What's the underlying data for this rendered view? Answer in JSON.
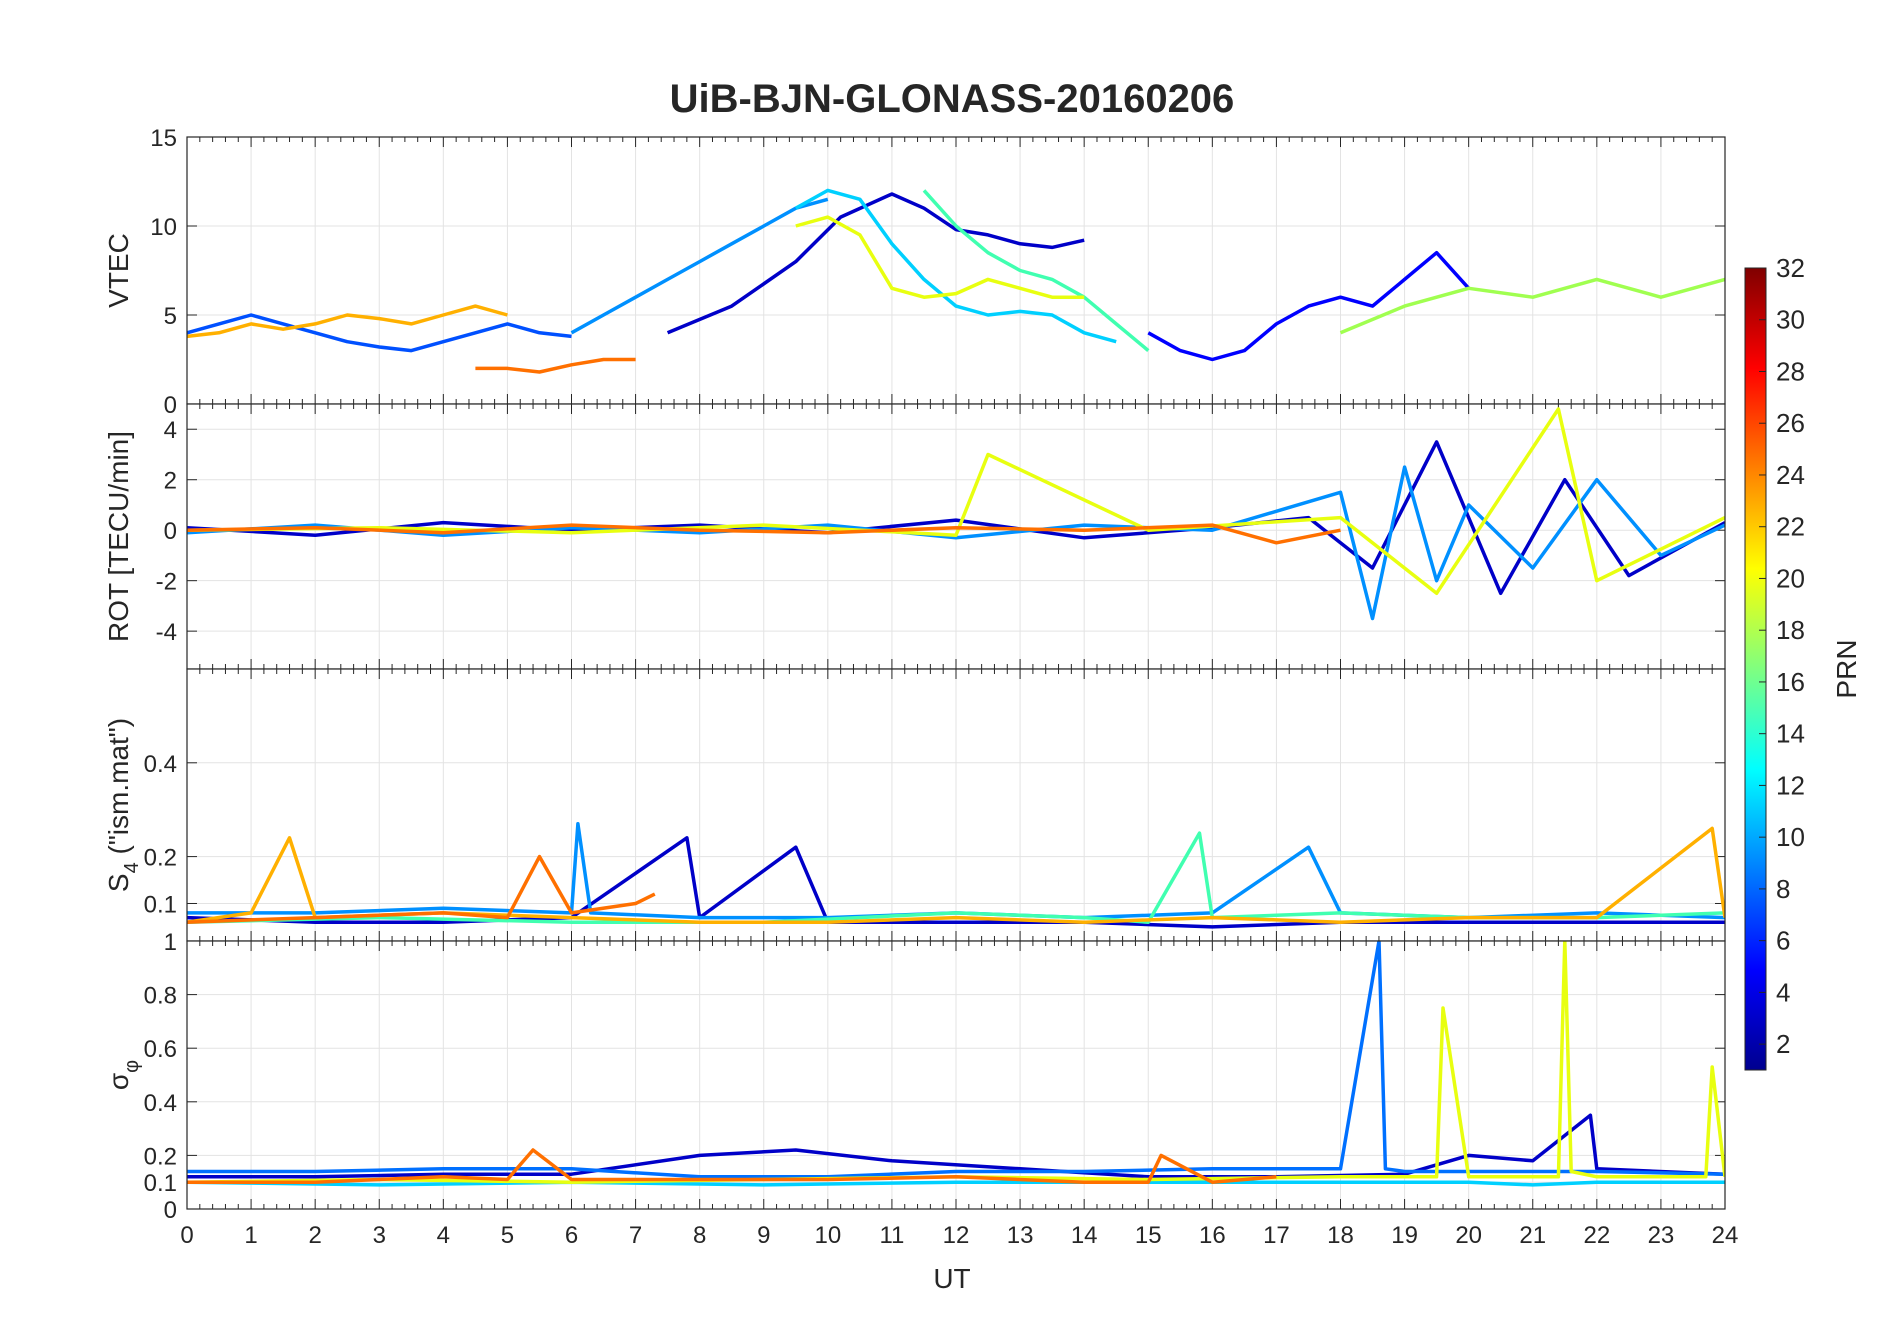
{
  "chart_data": {
    "type": "line",
    "title": "UiB-BJN-GLONASS-20160206",
    "xlabel": "UT",
    "xlim": [
      0,
      24
    ],
    "x_ticks": [
      "0",
      "1",
      "2",
      "3",
      "4",
      "5",
      "6",
      "7",
      "8",
      "9",
      "10",
      "11",
      "12",
      "13",
      "14",
      "15",
      "16",
      "17",
      "18",
      "19",
      "20",
      "21",
      "22",
      "23",
      "24"
    ],
    "grid": true,
    "colorbar": {
      "label": "PRN",
      "range": [
        1,
        32
      ],
      "ticks": [
        "2",
        "4",
        "6",
        "8",
        "10",
        "12",
        "14",
        "16",
        "18",
        "20",
        "22",
        "24",
        "26",
        "28",
        "30",
        "32"
      ],
      "colormap": "jet",
      "placement": "right"
    },
    "panels": [
      {
        "id": "vtec",
        "ylabel": "VTEC",
        "ylim": [
          0,
          15
        ],
        "y_ticks": [
          "0",
          "5",
          "10",
          "15"
        ],
        "series": [
          {
            "name": "PRN 2",
            "color": "#0000c8",
            "x": [
              7.5,
              8.5,
              9.5,
              10.2,
              11.0,
              11.5,
              12.0,
              12.5,
              13.0,
              13.5,
              14.0
            ],
            "values": [
              4.0,
              5.5,
              8.0,
              10.5,
              11.8,
              11.0,
              9.8,
              9.5,
              9.0,
              8.8,
              9.2
            ]
          },
          {
            "name": "PRN 4",
            "color": "#0000ff",
            "x": [
              15.0,
              15.5,
              16.0,
              16.5,
              17.0,
              17.5,
              18.0,
              18.5,
              19.0,
              19.5,
              20.0
            ],
            "values": [
              4.0,
              3.0,
              2.5,
              3.0,
              4.5,
              5.5,
              6.0,
              5.5,
              7.0,
              8.5,
              6.5
            ]
          },
          {
            "name": "PRN 6",
            "color": "#0050ff",
            "x": [
              0.0,
              0.5,
              1.0,
              1.5,
              2.0,
              2.5,
              3.0,
              3.5,
              4.0,
              4.5,
              5.0,
              5.5,
              6.0
            ],
            "values": [
              4.0,
              4.5,
              5.0,
              4.5,
              4.0,
              3.5,
              3.2,
              3.0,
              3.5,
              4.0,
              4.5,
              4.0,
              3.8
            ]
          },
          {
            "name": "PRN 10",
            "color": "#0090ff",
            "x": [
              6.0,
              6.5,
              7.0,
              7.5,
              8.0,
              8.5,
              9.0,
              9.5,
              10.0
            ],
            "values": [
              4.0,
              5.0,
              6.0,
              7.0,
              8.0,
              9.0,
              10.0,
              11.0,
              11.5
            ]
          },
          {
            "name": "PRN 12",
            "color": "#00d0ff",
            "x": [
              9.5,
              10.0,
              10.5,
              11.0,
              11.5,
              12.0,
              12.5,
              13.0,
              13.5,
              14.0,
              14.5
            ],
            "values": [
              11.0,
              12.0,
              11.5,
              9.0,
              7.0,
              5.5,
              5.0,
              5.2,
              5.0,
              4.0,
              3.5
            ]
          },
          {
            "name": "PRN 16",
            "color": "#40ffb0",
            "x": [
              11.5,
              12.0,
              12.5,
              13.0,
              13.5,
              14.0,
              14.5,
              15.0
            ],
            "values": [
              12.0,
              10.0,
              8.5,
              7.5,
              7.0,
              6.0,
              4.5,
              3.0
            ]
          },
          {
            "name": "PRN 20",
            "color": "#e8ff10",
            "x": [
              9.5,
              10.0,
              10.5,
              11.0,
              11.5,
              12.0,
              12.5,
              13.0,
              13.5,
              14.0
            ],
            "values": [
              10.0,
              10.5,
              9.5,
              6.5,
              6.0,
              6.2,
              7.0,
              6.5,
              6.0,
              6.0
            ]
          },
          {
            "name": "PRN 22",
            "color": "#ffb000",
            "x": [
              0.0,
              0.5,
              1.0,
              1.5,
              2.0,
              2.5,
              3.0,
              3.5,
              4.0,
              4.5,
              5.0
            ],
            "values": [
              3.8,
              4.0,
              4.5,
              4.2,
              4.5,
              5.0,
              4.8,
              4.5,
              5.0,
              5.5,
              5.0
            ]
          },
          {
            "name": "PRN 24",
            "color": "#ff7000",
            "x": [
              4.5,
              5.0,
              5.5,
              6.0,
              6.5,
              7.0
            ],
            "values": [
              2.0,
              2.0,
              1.8,
              2.2,
              2.5,
              2.5
            ]
          },
          {
            "name": "PRN 18",
            "color": "#a0ff50",
            "x": [
              18.0,
              19.0,
              20.0,
              21.0,
              22.0,
              23.0,
              24.0
            ],
            "values": [
              4.0,
              5.5,
              6.5,
              6.0,
              7.0,
              6.0,
              7.0
            ]
          }
        ]
      },
      {
        "id": "rot",
        "ylabel": "ROT [TECU/min]",
        "ylim": [
          -5.5,
          5
        ],
        "y_ticks": [
          "-4",
          "-2",
          "0",
          "2",
          "4"
        ],
        "series": [
          {
            "name": "PRN 2",
            "color": "#0000c8",
            "x": [
              0,
              2,
              4,
              6,
              8,
              10,
              12,
              14,
              16,
              17.5,
              18.5,
              19.5,
              20.5,
              21.5,
              22.5,
              24
            ],
            "values": [
              0.1,
              -0.2,
              0.3,
              0.0,
              0.2,
              -0.1,
              0.4,
              -0.3,
              0.1,
              0.5,
              -1.5,
              3.5,
              -2.5,
              2.0,
              -1.8,
              0.3
            ]
          },
          {
            "name": "PRN 10",
            "color": "#0090ff",
            "x": [
              0,
              2,
              4,
              6,
              8,
              10,
              12,
              14,
              16,
              18,
              18.5,
              19,
              19.5,
              20,
              21,
              22,
              23,
              24
            ],
            "values": [
              -0.1,
              0.2,
              -0.2,
              0.1,
              -0.1,
              0.2,
              -0.3,
              0.2,
              0.0,
              1.5,
              -3.5,
              2.5,
              -2.0,
              1.0,
              -1.5,
              2.0,
              -1.0,
              0.2
            ]
          },
          {
            "name": "PRN 20",
            "color": "#e8ff10",
            "x": [
              0,
              3,
              6,
              9,
              12,
              12.5,
              15,
              18,
              19.5,
              21.4,
              22,
              24
            ],
            "values": [
              0.0,
              0.1,
              -0.1,
              0.2,
              -0.2,
              3.0,
              0.0,
              0.5,
              -2.5,
              4.8,
              -2.0,
              0.5
            ]
          },
          {
            "name": "PRN 24",
            "color": "#ff7000",
            "x": [
              0,
              2,
              4,
              6,
              8,
              10,
              12,
              14,
              16,
              17,
              18
            ],
            "values": [
              0.0,
              0.1,
              -0.1,
              0.2,
              0.0,
              -0.1,
              0.1,
              0.0,
              0.2,
              -0.5,
              0.0
            ]
          }
        ]
      },
      {
        "id": "s4",
        "ylabel_main": "S",
        "ylabel_sub": "4",
        "ylabel_rest": " (\"ism.mat\")",
        "ylim": [
          0.02,
          0.6
        ],
        "y_ticks": [
          "0.1",
          "0.2",
          "0.4"
        ],
        "series": [
          {
            "name": "PRN 2",
            "color": "#0000c8",
            "x": [
              0,
              2,
              4,
              6,
              7.8,
              8,
              9.5,
              10,
              12,
              14,
              16,
              18,
              20,
              22,
              24
            ],
            "values": [
              0.07,
              0.06,
              0.06,
              0.07,
              0.24,
              0.07,
              0.22,
              0.06,
              0.06,
              0.06,
              0.05,
              0.06,
              0.06,
              0.06,
              0.06
            ]
          },
          {
            "name": "PRN 10",
            "color": "#0090ff",
            "x": [
              0,
              2,
              4,
              6,
              6.1,
              6.3,
              8,
              10,
              12,
              14,
              16,
              17.5,
              18,
              20,
              22,
              24
            ],
            "values": [
              0.08,
              0.08,
              0.09,
              0.08,
              0.27,
              0.08,
              0.07,
              0.07,
              0.08,
              0.07,
              0.08,
              0.22,
              0.08,
              0.07,
              0.08,
              0.07
            ]
          },
          {
            "name": "PRN 16",
            "color": "#40ffb0",
            "x": [
              0,
              3,
              6,
              9,
              12,
              14,
              15,
              15.8,
              16,
              18,
              20,
              22,
              24
            ],
            "values": [
              0.06,
              0.07,
              0.06,
              0.06,
              0.08,
              0.07,
              0.06,
              0.25,
              0.07,
              0.08,
              0.07,
              0.07,
              0.08
            ]
          },
          {
            "name": "PRN 22",
            "color": "#ffb000",
            "x": [
              0,
              1,
              1.6,
              2,
              4,
              6,
              8,
              10,
              12,
              14,
              16,
              18,
              20,
              22,
              23.8,
              24
            ],
            "values": [
              0.06,
              0.08,
              0.24,
              0.07,
              0.08,
              0.07,
              0.06,
              0.06,
              0.07,
              0.06,
              0.07,
              0.06,
              0.07,
              0.07,
              0.26,
              0.07
            ]
          },
          {
            "name": "PRN 24",
            "color": "#ff7000",
            "x": [
              0,
              2,
              4,
              5,
              5.5,
              6,
              7,
              7.3
            ],
            "values": [
              0.06,
              0.07,
              0.08,
              0.07,
              0.2,
              0.08,
              0.1,
              0.12
            ]
          }
        ]
      },
      {
        "id": "sigma",
        "ylabel_main": "σ",
        "ylabel_sub": "φ",
        "ylim": [
          0,
          1
        ],
        "y_ticks": [
          "0",
          "0.1",
          "0.2",
          "0.4",
          "0.6",
          "0.8",
          "1"
        ],
        "series": [
          {
            "name": "PRN 2",
            "color": "#0000c8",
            "x": [
              0,
              2,
              4,
              6,
              8,
              9.5,
              11,
              13,
              15,
              17,
              19,
              20,
              21,
              21.9,
              22,
              24
            ],
            "values": [
              0.12,
              0.12,
              0.13,
              0.13,
              0.2,
              0.22,
              0.18,
              0.15,
              0.12,
              0.12,
              0.13,
              0.2,
              0.18,
              0.35,
              0.15,
              0.13
            ]
          },
          {
            "name": "PRN 8",
            "color": "#0070ff",
            "x": [
              0,
              2,
              4,
              6,
              8,
              10,
              12,
              14,
              16,
              18,
              18.6,
              18.7,
              19,
              20,
              22,
              24
            ],
            "values": [
              0.14,
              0.14,
              0.15,
              0.15,
              0.12,
              0.12,
              0.14,
              0.14,
              0.15,
              0.15,
              1.0,
              0.15,
              0.14,
              0.14,
              0.14,
              0.13
            ]
          },
          {
            "name": "PRN 12",
            "color": "#00d0ff",
            "x": [
              0,
              3,
              6,
              9,
              12,
              15,
              18,
              20,
              21,
              22,
              24
            ],
            "values": [
              0.1,
              0.09,
              0.1,
              0.09,
              0.1,
              0.1,
              0.1,
              0.1,
              0.09,
              0.1,
              0.1
            ]
          },
          {
            "name": "PRN 20",
            "color": "#e8ff10",
            "x": [
              0,
              3,
              6,
              9,
              12,
              15,
              18,
              19.5,
              19.6,
              20,
              21.4,
              21.5,
              21.6,
              22,
              23.7,
              23.8,
              24
            ],
            "values": [
              0.1,
              0.11,
              0.1,
              0.11,
              0.12,
              0.11,
              0.12,
              0.12,
              0.75,
              0.12,
              0.12,
              1.0,
              0.14,
              0.12,
              0.12,
              0.53,
              0.12
            ]
          },
          {
            "name": "PRN 24",
            "color": "#ff7000",
            "x": [
              0,
              2,
              4,
              5,
              5.4,
              6,
              8,
              10,
              12,
              14,
              15,
              15.2,
              16,
              17
            ],
            "values": [
              0.1,
              0.1,
              0.12,
              0.11,
              0.22,
              0.11,
              0.11,
              0.11,
              0.12,
              0.1,
              0.1,
              0.2,
              0.1,
              0.12
            ]
          }
        ]
      }
    ]
  }
}
